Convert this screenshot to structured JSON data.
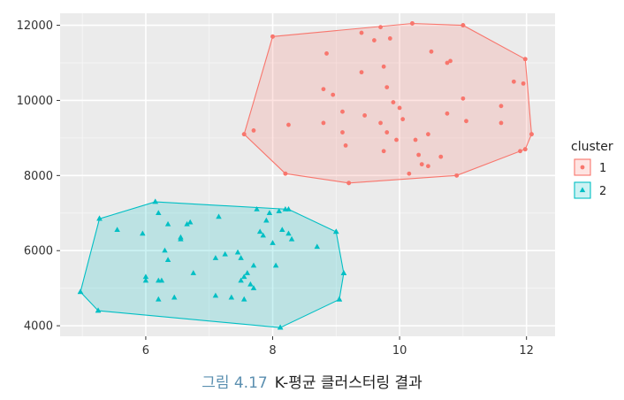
{
  "chart_data": {
    "type": "scatter",
    "title": "",
    "xlabel": "",
    "ylabel": "",
    "xlim": [
      4.65,
      12.45
    ],
    "ylim": [
      3720,
      12320
    ],
    "xticks": [
      6,
      8,
      10,
      12
    ],
    "yticks": [
      4000,
      6000,
      8000,
      10000,
      12000
    ],
    "grid": true,
    "legend": {
      "title": "cluster",
      "position": "right"
    },
    "colors": {
      "1": "#F8766D",
      "2": "#00BFC4"
    },
    "series": [
      {
        "name": "1",
        "shape": "circle",
        "hull": [
          [
            7.55,
            9100
          ],
          [
            8.0,
            11700
          ],
          [
            10.2,
            12050
          ],
          [
            11.0,
            12000
          ],
          [
            11.98,
            11100
          ],
          [
            12.08,
            9100
          ],
          [
            11.98,
            8700
          ],
          [
            10.9,
            8000
          ],
          [
            9.2,
            7800
          ],
          [
            8.2,
            8050
          ]
        ],
        "points": [
          [
            7.55,
            9100
          ],
          [
            7.7,
            9200
          ],
          [
            8.0,
            11700
          ],
          [
            8.2,
            8050
          ],
          [
            8.25,
            9350
          ],
          [
            8.8,
            9400
          ],
          [
            8.8,
            10300
          ],
          [
            8.85,
            11250
          ],
          [
            8.95,
            10150
          ],
          [
            9.1,
            9700
          ],
          [
            9.1,
            9150
          ],
          [
            9.15,
            8800
          ],
          [
            9.2,
            7800
          ],
          [
            9.4,
            10750
          ],
          [
            9.45,
            9600
          ],
          [
            9.4,
            11800
          ],
          [
            9.6,
            11600
          ],
          [
            9.7,
            11950
          ],
          [
            9.7,
            9400
          ],
          [
            9.75,
            8650
          ],
          [
            9.75,
            10900
          ],
          [
            9.8,
            10350
          ],
          [
            9.8,
            9150
          ],
          [
            9.85,
            11650
          ],
          [
            9.9,
            9950
          ],
          [
            9.95,
            8950
          ],
          [
            10.0,
            9800
          ],
          [
            10.05,
            9500
          ],
          [
            10.15,
            8050
          ],
          [
            10.2,
            12050
          ],
          [
            10.25,
            8950
          ],
          [
            10.3,
            8550
          ],
          [
            10.35,
            8300
          ],
          [
            10.45,
            8250
          ],
          [
            10.45,
            9100
          ],
          [
            10.5,
            11300
          ],
          [
            10.65,
            8500
          ],
          [
            10.75,
            9650
          ],
          [
            10.75,
            11000
          ],
          [
            10.8,
            11050
          ],
          [
            10.9,
            8000
          ],
          [
            11.0,
            12000
          ],
          [
            11.0,
            10050
          ],
          [
            11.05,
            9450
          ],
          [
            11.6,
            9400
          ],
          [
            11.6,
            9850
          ],
          [
            11.8,
            10500
          ],
          [
            11.9,
            8650
          ],
          [
            11.95,
            10450
          ],
          [
            11.98,
            11100
          ],
          [
            11.98,
            8700
          ],
          [
            12.08,
            9100
          ]
        ]
      },
      {
        "name": "2",
        "shape": "triangle",
        "hull": [
          [
            4.97,
            4900
          ],
          [
            5.25,
            4400
          ],
          [
            8.12,
            3950
          ],
          [
            9.05,
            4700
          ],
          [
            9.12,
            5400
          ],
          [
            9.0,
            6500
          ],
          [
            8.25,
            7100
          ],
          [
            6.15,
            7300
          ],
          [
            5.27,
            6850
          ]
        ],
        "points": [
          [
            4.97,
            4900
          ],
          [
            5.25,
            4400
          ],
          [
            5.27,
            6850
          ],
          [
            5.55,
            6550
          ],
          [
            5.95,
            6450
          ],
          [
            6.0,
            5200
          ],
          [
            6.0,
            5300
          ],
          [
            6.15,
            7300
          ],
          [
            6.2,
            7000
          ],
          [
            6.2,
            5200
          ],
          [
            6.2,
            4700
          ],
          [
            6.25,
            5200
          ],
          [
            6.3,
            6000
          ],
          [
            6.35,
            6700
          ],
          [
            6.35,
            5750
          ],
          [
            6.45,
            4750
          ],
          [
            6.55,
            6300
          ],
          [
            6.55,
            6350
          ],
          [
            6.65,
            6700
          ],
          [
            6.7,
            6750
          ],
          [
            6.75,
            5400
          ],
          [
            7.1,
            4800
          ],
          [
            7.1,
            5800
          ],
          [
            7.15,
            6900
          ],
          [
            7.25,
            5900
          ],
          [
            7.35,
            4750
          ],
          [
            7.45,
            5950
          ],
          [
            7.5,
            5200
          ],
          [
            7.5,
            5800
          ],
          [
            7.55,
            5300
          ],
          [
            7.55,
            4700
          ],
          [
            7.6,
            5400
          ],
          [
            7.65,
            5100
          ],
          [
            7.7,
            5000
          ],
          [
            7.7,
            5600
          ],
          [
            7.75,
            7100
          ],
          [
            7.8,
            6500
          ],
          [
            7.85,
            6400
          ],
          [
            7.9,
            6800
          ],
          [
            7.95,
            7000
          ],
          [
            8.0,
            6200
          ],
          [
            8.05,
            5600
          ],
          [
            8.1,
            7050
          ],
          [
            8.12,
            3950
          ],
          [
            8.15,
            6550
          ],
          [
            8.2,
            7100
          ],
          [
            8.25,
            6450
          ],
          [
            8.3,
            6300
          ],
          [
            8.7,
            6100
          ],
          [
            9.0,
            6500
          ],
          [
            9.05,
            4700
          ],
          [
            9.12,
            5400
          ]
        ]
      }
    ]
  },
  "caption": {
    "number": "그림 4.17",
    "text": "K-평균 클러스터링 결과"
  }
}
